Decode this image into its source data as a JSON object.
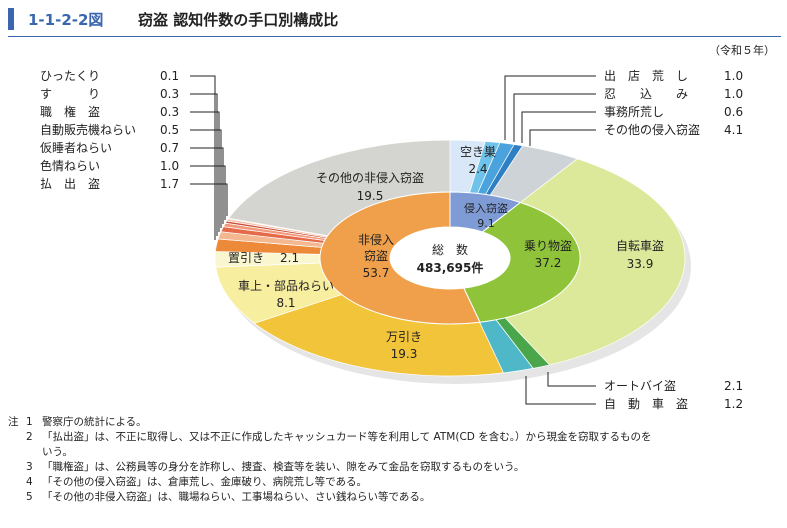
{
  "header": {
    "figure_id": "1-1-2-2図",
    "title": "窃盗 認知件数の手口別構成比"
  },
  "year_note": "（令和５年）",
  "chart_data": {
    "type": "pie",
    "total_label": "総　数",
    "total_value": "483,695件",
    "inner": [
      {
        "name": "侵入窃盗",
        "value": 9.1,
        "color": "#7f9bd6"
      },
      {
        "name": "乗り物盗",
        "value": 37.2,
        "color": "#8fc43a"
      },
      {
        "name": "非侵入窃盗",
        "value": 53.7,
        "color": "#f0a04a"
      }
    ],
    "inner_labels": {
      "intrusion": {
        "name": "侵入窃盗",
        "value": "9.1"
      },
      "vehicle": {
        "name": "乗り物盗",
        "value": "37.2"
      },
      "non_intrusion": {
        "name1": "非侵入",
        "name2": "窃盗",
        "value": "53.7"
      }
    },
    "outer": [
      {
        "name": "空き巣",
        "value": 2.4,
        "color": "#d8e8f8"
      },
      {
        "name": "出店荒し",
        "value": 1.0,
        "color": "#6fc3ea"
      },
      {
        "name": "忍込み",
        "value": 1.0,
        "color": "#4aa3dc"
      },
      {
        "name": "事務所荒し",
        "value": 0.6,
        "color": "#2f7fc4"
      },
      {
        "name": "その他の侵入窃盗",
        "value": 4.1,
        "color": "#cdd3d6"
      },
      {
        "name": "自転車盗",
        "value": 33.9,
        "color": "#dce99a"
      },
      {
        "name": "自動車盗",
        "value": 1.2,
        "color": "#4aa64a"
      },
      {
        "name": "オートバイ盗",
        "value": 2.1,
        "color": "#4fb8c8"
      },
      {
        "name": "万引き",
        "value": 19.3,
        "color": "#f2c43a"
      },
      {
        "name": "車上・部品ねらい",
        "value": 8.1,
        "color": "#f8eea0"
      },
      {
        "name": "置引き",
        "value": 2.1,
        "color": "#faf6d0"
      },
      {
        "name": "払出盗",
        "value": 1.7,
        "color": "#ec8a3a"
      },
      {
        "name": "色情ねらい",
        "value": 1.0,
        "color": "#f4b890"
      },
      {
        "name": "仮睡者ねらい",
        "value": 0.7,
        "color": "#e46a4a"
      },
      {
        "name": "自動販売機ねらい",
        "value": 0.5,
        "color": "#f29878"
      },
      {
        "name": "職権盗",
        "value": 0.3,
        "color": "#c8503a"
      },
      {
        "name": "すり",
        "value": 0.3,
        "color": "#f6c0a8"
      },
      {
        "name": "ひったくり",
        "value": 0.1,
        "color": "#b04030"
      },
      {
        "name": "その他の非侵入窃盗",
        "value": 19.5,
        "color": "#d4d4d0"
      }
    ],
    "labels": {
      "akisu": {
        "name": "空き巣",
        "value": "2.4"
      },
      "jitensha": {
        "name": "自転車盗",
        "value": "33.9"
      },
      "manbiki": {
        "name": "万引き",
        "value": "19.3"
      },
      "shajo": {
        "name": "車上・部品ねらい",
        "value": "8.1"
      },
      "okibiki": {
        "name": "置引き",
        "value": "2.1"
      },
      "sonota_non": {
        "name": "その他の非侵入窃盗",
        "value": "19.5"
      }
    },
    "left_callouts": [
      {
        "name": "ひったくり",
        "value": "0.1"
      },
      {
        "name": "す　　　り",
        "value": "0.3"
      },
      {
        "name": "職　権　盗",
        "value": "0.3"
      },
      {
        "name": "自動販売機ねらい",
        "value": "0.5"
      },
      {
        "name": "仮睡者ねらい",
        "value": "0.7"
      },
      {
        "name": "色情ねらい",
        "value": "1.0"
      },
      {
        "name": "払　出　盗",
        "value": "1.7"
      }
    ],
    "right_callouts": [
      {
        "name": "出　店　荒　し",
        "value": "1.0"
      },
      {
        "name": "忍　　込　　み",
        "value": "1.0"
      },
      {
        "name": "事務所荒し",
        "value": "0.6"
      },
      {
        "name": "その他の侵入窃盗",
        "value": "4.1"
      }
    ],
    "bottom_callouts": [
      {
        "name": "オートバイ盗",
        "value": "2.1"
      },
      {
        "name": "自　動　車　盗",
        "value": "1.2"
      }
    ]
  },
  "notes": {
    "label": "注",
    "items": [
      {
        "n": "1",
        "text": "警察庁の統計による。"
      },
      {
        "n": "2",
        "text": "「払出盗」は、不正に取得し、又は不正に作成したキャッシュカード等を利用して ATM(CD を含む。）から現金を窃取するものを",
        "cont": "いう。"
      },
      {
        "n": "3",
        "text": "「職権盗」は、公務員等の身分を詐称し、捜査、検査等を装い、隙をみて金品を窃取するものをいう。"
      },
      {
        "n": "4",
        "text": "「その他の侵入窃盗」は、倉庫荒し、金庫破り、病院荒し等である。"
      },
      {
        "n": "5",
        "text": "「その他の非侵入窃盗」は、職場ねらい、工事場ねらい、さい銭ねらい等である。"
      }
    ]
  }
}
